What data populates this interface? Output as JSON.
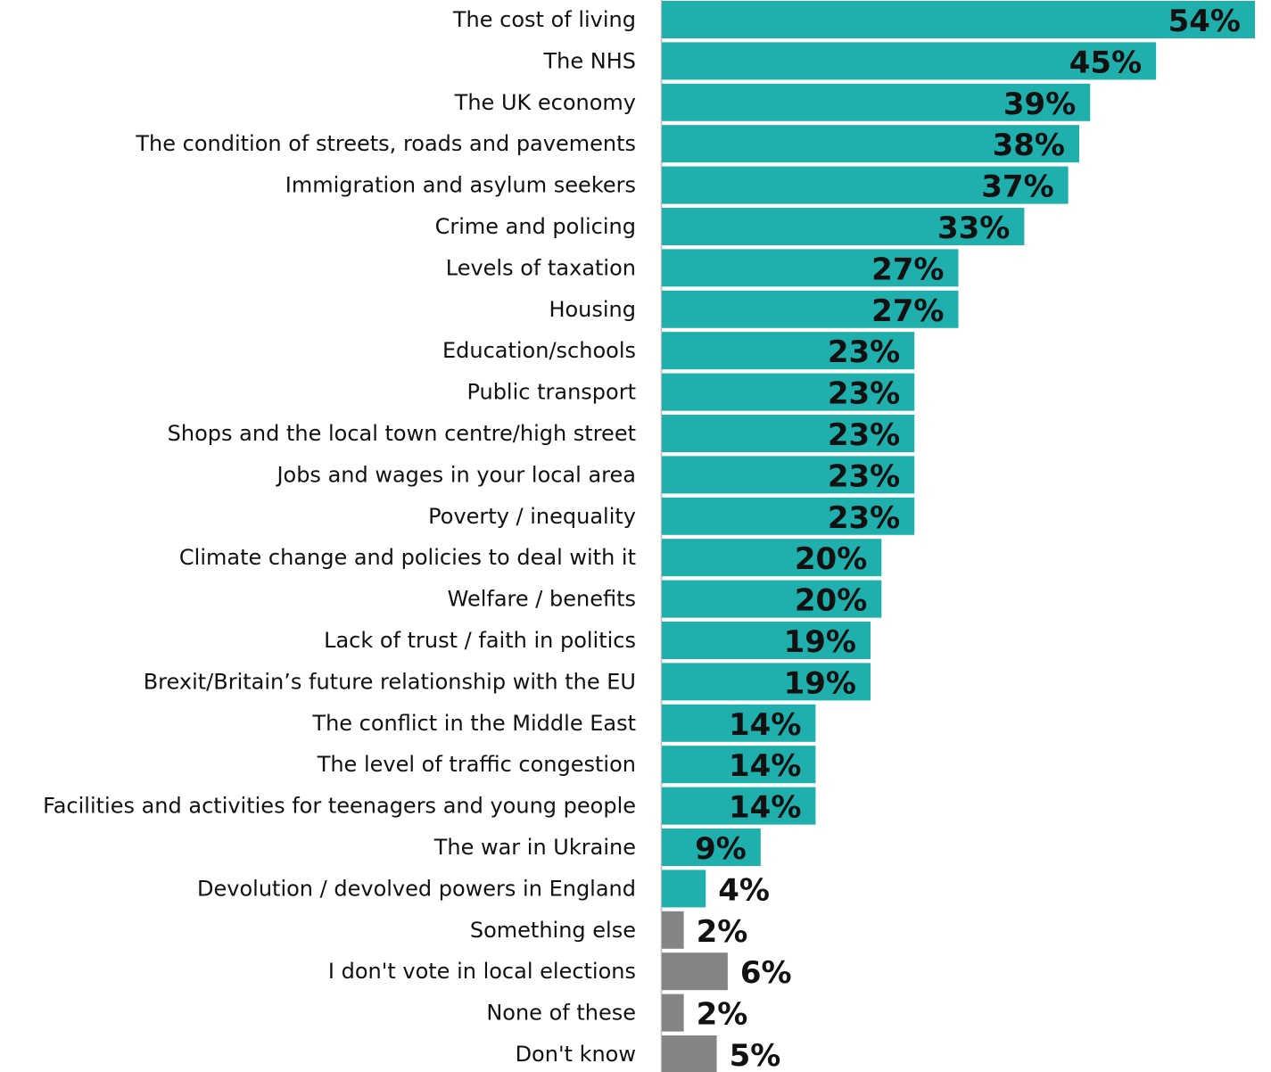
{
  "chart_data": {
    "type": "bar",
    "orientation": "horizontal",
    "categories": [
      "The cost of living",
      "The NHS",
      "The UK economy",
      "The condition of streets, roads and pavements",
      "Immigration and asylum seekers",
      "Crime and policing",
      "Levels of taxation",
      "Housing",
      "Education/schools",
      "Public transport",
      "Shops and the local town centre/high street",
      "Jobs and wages in your local area",
      "Poverty / inequality",
      "Climate change and policies to deal with it",
      "Welfare / benefits",
      "Lack of trust / faith in politics",
      "Brexit/Britain’s future relationship with the EU",
      "The conflict in the Middle East",
      "The level of traffic congestion",
      "Facilities and activities for teenagers and young people",
      "The war in Ukraine",
      "Devolution / devolved powers in England",
      "Something else",
      "I don't vote in local elections",
      "None of these",
      "Don't know"
    ],
    "values": [
      54,
      45,
      39,
      38,
      37,
      33,
      27,
      27,
      23,
      23,
      23,
      23,
      23,
      20,
      20,
      19,
      19,
      14,
      14,
      14,
      9,
      4,
      2,
      6,
      2,
      5
    ],
    "value_labels": [
      "54%",
      "45%",
      "39%",
      "38%",
      "37%",
      "33%",
      "27%",
      "27%",
      "23%",
      "23%",
      "23%",
      "23%",
      "23%",
      "20%",
      "20%",
      "19%",
      "19%",
      "14%",
      "14%",
      "14%",
      "9%",
      "4%",
      "2%",
      "6%",
      "2%",
      "5%"
    ],
    "bar_colors": [
      "#1fb0ad",
      "#1fb0ad",
      "#1fb0ad",
      "#1fb0ad",
      "#1fb0ad",
      "#1fb0ad",
      "#1fb0ad",
      "#1fb0ad",
      "#1fb0ad",
      "#1fb0ad",
      "#1fb0ad",
      "#1fb0ad",
      "#1fb0ad",
      "#1fb0ad",
      "#1fb0ad",
      "#1fb0ad",
      "#1fb0ad",
      "#1fb0ad",
      "#1fb0ad",
      "#1fb0ad",
      "#1fb0ad",
      "#1fb0ad",
      "#848484",
      "#848484",
      "#848484",
      "#848484"
    ],
    "colors": {
      "primary": "#1fb0ad",
      "secondary": "#848484",
      "axis": "#bbbbbb",
      "text": "#111111"
    },
    "xlim": [
      0,
      54
    ],
    "grid": false,
    "legend": "none",
    "title": "",
    "xlabel": "",
    "ylabel": ""
  }
}
